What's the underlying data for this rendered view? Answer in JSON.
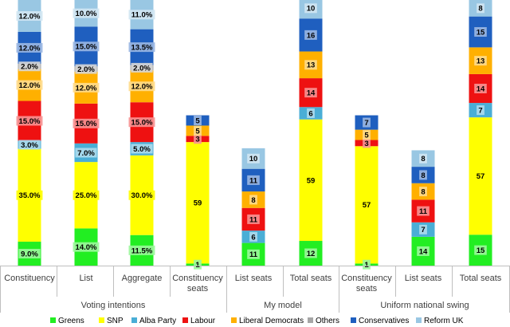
{
  "chart_data": {
    "type": "bar",
    "stacked": true,
    "series_colors": {
      "Greens": "#22ee22",
      "SNP": "#ffff00",
      "Alba Party": "#4aaed6",
      "Labour": "#ee1111",
      "Liberal Democrats": "#ffb000",
      "Others": "#a6a6a6",
      "Conservatives": "#1f5fbf",
      "Reform UK": "#99c7e3"
    },
    "legend": [
      {
        "name": "Greens",
        "color": "#22ee22"
      },
      {
        "name": "SNP",
        "color": "#ffff00"
      },
      {
        "name": "Alba Party",
        "color": "#4aaed6"
      },
      {
        "name": "Labour",
        "color": "#ee1111"
      },
      {
        "name": "Liberal Democrats",
        "color": "#ffb000"
      },
      {
        "name": "Others",
        "color": "#a6a6a6"
      },
      {
        "name": "Conservatives",
        "color": "#1f5fbf"
      },
      {
        "name": "Reform UK",
        "color": "#99c7e3"
      }
    ],
    "legend_position": "bottom",
    "groups": [
      "Voting intentions",
      "My model",
      "Uniform national swing"
    ],
    "bars": [
      {
        "category": "Constituency",
        "group": "Voting intentions",
        "unit": "%",
        "segments": [
          {
            "series": "Greens",
            "value": 9.0,
            "label": "9.0%"
          },
          {
            "series": "SNP",
            "value": 35.0,
            "label": "35.0%"
          },
          {
            "series": "Alba Party",
            "value": 3.0,
            "label": "3.0%"
          },
          {
            "series": "Labour",
            "value": 15.0,
            "label": "15.0%"
          },
          {
            "series": "Liberal Democrats",
            "value": 12.0,
            "label": "12.0%"
          },
          {
            "series": "Others",
            "value": 2.0,
            "label": "2.0%"
          },
          {
            "series": "Conservatives",
            "value": 12.0,
            "label": "12.0%"
          },
          {
            "series": "Reform UK",
            "value": 12.0,
            "label": "12.0%"
          }
        ]
      },
      {
        "category": "List",
        "group": "Voting intentions",
        "unit": "%",
        "segments": [
          {
            "series": "Greens",
            "value": 14.0,
            "label": "14.0%"
          },
          {
            "series": "SNP",
            "value": 25.0,
            "label": "25.0%"
          },
          {
            "series": "Alba Party",
            "value": 7.0,
            "label": "7.0%"
          },
          {
            "series": "Labour",
            "value": 15.0,
            "label": "15.0%"
          },
          {
            "series": "Liberal Democrats",
            "value": 12.0,
            "label": "12.0%"
          },
          {
            "series": "Others",
            "value": 2.0,
            "label": "2.0%"
          },
          {
            "series": "Conservatives",
            "value": 15.0,
            "label": "15.0%"
          },
          {
            "series": "Reform UK",
            "value": 10.0,
            "label": "10.0%"
          }
        ]
      },
      {
        "category": "Aggregate",
        "group": "Voting intentions",
        "unit": "%",
        "segments": [
          {
            "series": "Greens",
            "value": 11.5,
            "label": "11.5%"
          },
          {
            "series": "SNP",
            "value": 30.0,
            "label": "30.0%"
          },
          {
            "series": "Alba Party",
            "value": 5.0,
            "label": "5.0%"
          },
          {
            "series": "Labour",
            "value": 15.0,
            "label": "15.0%"
          },
          {
            "series": "Liberal Democrats",
            "value": 12.0,
            "label": "12.0%"
          },
          {
            "series": "Others",
            "value": 2.0,
            "label": "2.0%"
          },
          {
            "series": "Conservatives",
            "value": 13.5,
            "label": "13.5%"
          },
          {
            "series": "Reform UK",
            "value": 11.0,
            "label": "11.0%"
          }
        ]
      },
      {
        "category": "Constituency seats",
        "group": "My model",
        "unit": "seats",
        "segments": [
          {
            "series": "Greens",
            "value": 1,
            "label": "1"
          },
          {
            "series": "SNP",
            "value": 59,
            "label": "59"
          },
          {
            "series": "Labour",
            "value": 3,
            "label": "3"
          },
          {
            "series": "Liberal Democrats",
            "value": 5,
            "label": "5"
          },
          {
            "series": "Conservatives",
            "value": 5,
            "label": "5"
          }
        ]
      },
      {
        "category": "List seats",
        "group": "My model",
        "unit": "seats",
        "segments": [
          {
            "series": "Greens",
            "value": 11,
            "label": "11"
          },
          {
            "series": "Alba Party",
            "value": 6,
            "label": "6"
          },
          {
            "series": "Labour",
            "value": 11,
            "label": "11"
          },
          {
            "series": "Liberal Democrats",
            "value": 8,
            "label": "8"
          },
          {
            "series": "Conservatives",
            "value": 11,
            "label": "11"
          },
          {
            "series": "Reform UK",
            "value": 10,
            "label": "10"
          }
        ]
      },
      {
        "category": "Total seats",
        "group": "My model",
        "unit": "seats",
        "segments": [
          {
            "series": "Greens",
            "value": 12,
            "label": "12"
          },
          {
            "series": "SNP",
            "value": 59,
            "label": "59"
          },
          {
            "series": "Alba Party",
            "value": 6,
            "label": "6"
          },
          {
            "series": "Labour",
            "value": 14,
            "label": "14"
          },
          {
            "series": "Liberal Democrats",
            "value": 13,
            "label": "13"
          },
          {
            "series": "Conservatives",
            "value": 16,
            "label": "16"
          },
          {
            "series": "Reform UK",
            "value": 10,
            "label": "10"
          }
        ]
      },
      {
        "category": "Constituency seats",
        "group": "Uniform national swing",
        "unit": "seats",
        "segments": [
          {
            "series": "Greens",
            "value": 1,
            "label": "1"
          },
          {
            "series": "SNP",
            "value": 57,
            "label": "57"
          },
          {
            "series": "Labour",
            "value": 3,
            "label": "3"
          },
          {
            "series": "Liberal Democrats",
            "value": 5,
            "label": "5"
          },
          {
            "series": "Conservatives",
            "value": 7,
            "label": "7"
          }
        ]
      },
      {
        "category": "List seats",
        "group": "Uniform national swing",
        "unit": "seats",
        "segments": [
          {
            "series": "Greens",
            "value": 14,
            "label": "14"
          },
          {
            "series": "Alba Party",
            "value": 7,
            "label": "7"
          },
          {
            "series": "Labour",
            "value": 11,
            "label": "11"
          },
          {
            "series": "Liberal Democrats",
            "value": 8,
            "label": "8"
          },
          {
            "series": "Conservatives",
            "value": 8,
            "label": "8"
          },
          {
            "series": "Reform UK",
            "value": 8,
            "label": "8"
          }
        ]
      },
      {
        "category": "Total seats",
        "group": "Uniform national swing",
        "unit": "seats",
        "segments": [
          {
            "series": "Greens",
            "value": 15,
            "label": "15"
          },
          {
            "series": "SNP",
            "value": 57,
            "label": "57"
          },
          {
            "series": "Alba Party",
            "value": 7,
            "label": "7"
          },
          {
            "series": "Labour",
            "value": 14,
            "label": "14"
          },
          {
            "series": "Liberal Democrats",
            "value": 13,
            "label": "13"
          },
          {
            "series": "Conservatives",
            "value": 15,
            "label": "15"
          },
          {
            "series": "Reform UK",
            "value": 8,
            "label": "8"
          }
        ]
      }
    ],
    "percent_axis_max": 100,
    "seat_axis_max": 129,
    "grid": false
  }
}
